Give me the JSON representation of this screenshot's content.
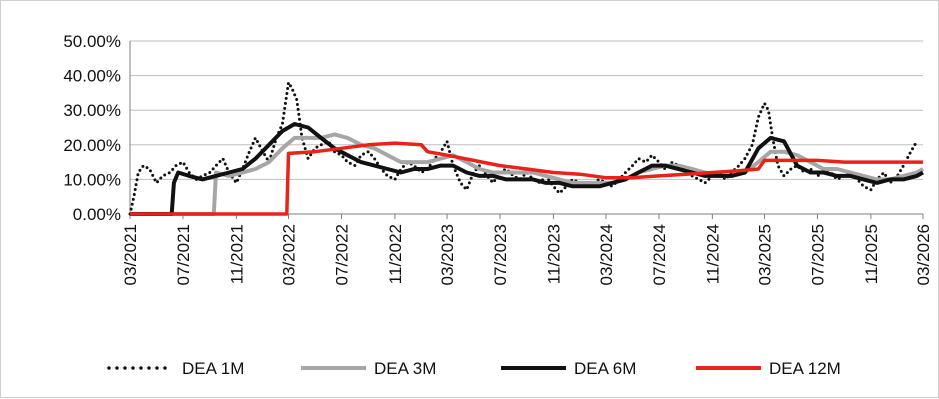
{
  "chart_data": {
    "type": "line",
    "title": "",
    "xlabel": "",
    "ylabel": "",
    "ylim": [
      0,
      0.5
    ],
    "y_ticks": [
      0,
      0.1,
      0.2,
      0.3,
      0.4,
      0.5
    ],
    "y_tick_labels": [
      "0.00%",
      "10.00%",
      "20.00%",
      "30.00%",
      "40.00%",
      "50.00%"
    ],
    "x_range": [
      "2021-03-01",
      "2026-03-01"
    ],
    "x_ticks": [
      "2021-03-01",
      "2021-07-01",
      "2021-11-01",
      "2022-03-01",
      "2022-07-01",
      "2022-11-01",
      "2023-03-01",
      "2023-07-01",
      "2023-11-01",
      "2024-03-01",
      "2024-07-01",
      "2024-11-01",
      "2025-03-01",
      "2025-07-01",
      "2025-11-01",
      "2026-03-01"
    ],
    "x_tick_labels": [
      "03/2021",
      "07/2021",
      "11/2021",
      "03/2022",
      "07/2022",
      "11/2022",
      "03/2023",
      "07/2023",
      "11/2023",
      "03/2024",
      "07/2024",
      "11/2024",
      "03/2025",
      "07/2025",
      "11/2025",
      "03/2026"
    ],
    "grid": true,
    "legend_position": "bottom",
    "series": [
      {
        "name": "DEA 1M",
        "color": "#111111",
        "style": "dotted",
        "points": [
          [
            "2021-03-01",
            0.0
          ],
          [
            "2021-03-10",
            0.05
          ],
          [
            "2021-03-20",
            0.12
          ],
          [
            "2021-04-01",
            0.14
          ],
          [
            "2021-04-15",
            0.13
          ],
          [
            "2021-05-01",
            0.09
          ],
          [
            "2021-05-15",
            0.11
          ],
          [
            "2021-06-01",
            0.12
          ],
          [
            "2021-06-15",
            0.14
          ],
          [
            "2021-07-01",
            0.15
          ],
          [
            "2021-07-15",
            0.12
          ],
          [
            "2021-08-01",
            0.1
          ],
          [
            "2021-08-15",
            0.11
          ],
          [
            "2021-09-01",
            0.12
          ],
          [
            "2021-09-15",
            0.14
          ],
          [
            "2021-10-01",
            0.16
          ],
          [
            "2021-10-15",
            0.12
          ],
          [
            "2021-11-01",
            0.09
          ],
          [
            "2021-11-15",
            0.13
          ],
          [
            "2021-12-01",
            0.18
          ],
          [
            "2021-12-15",
            0.22
          ],
          [
            "2022-01-01",
            0.18
          ],
          [
            "2022-01-15",
            0.15
          ],
          [
            "2022-02-01",
            0.22
          ],
          [
            "2022-02-15",
            0.26
          ],
          [
            "2022-03-01",
            0.38
          ],
          [
            "2022-03-10",
            0.36
          ],
          [
            "2022-03-20",
            0.33
          ],
          [
            "2022-04-01",
            0.22
          ],
          [
            "2022-04-15",
            0.16
          ],
          [
            "2022-05-01",
            0.19
          ],
          [
            "2022-05-15",
            0.2
          ],
          [
            "2022-06-01",
            0.21
          ],
          [
            "2022-06-15",
            0.18
          ],
          [
            "2022-07-01",
            0.17
          ],
          [
            "2022-07-15",
            0.15
          ],
          [
            "2022-08-01",
            0.14
          ],
          [
            "2022-08-15",
            0.17
          ],
          [
            "2022-09-01",
            0.18
          ],
          [
            "2022-09-15",
            0.16
          ],
          [
            "2022-10-01",
            0.13
          ],
          [
            "2022-10-15",
            0.11
          ],
          [
            "2022-11-01",
            0.1
          ],
          [
            "2022-11-15",
            0.13
          ],
          [
            "2022-12-01",
            0.15
          ],
          [
            "2022-12-15",
            0.14
          ],
          [
            "2023-01-01",
            0.12
          ],
          [
            "2023-01-15",
            0.13
          ],
          [
            "2023-02-01",
            0.16
          ],
          [
            "2023-02-15",
            0.18
          ],
          [
            "2023-03-01",
            0.21
          ],
          [
            "2023-03-15",
            0.14
          ],
          [
            "2023-04-01",
            0.09
          ],
          [
            "2023-04-15",
            0.07
          ],
          [
            "2023-05-01",
            0.12
          ],
          [
            "2023-05-15",
            0.14
          ],
          [
            "2023-06-01",
            0.11
          ],
          [
            "2023-06-15",
            0.09
          ],
          [
            "2023-07-01",
            0.12
          ],
          [
            "2023-07-15",
            0.13
          ],
          [
            "2023-08-01",
            0.11
          ],
          [
            "2023-08-15",
            0.1
          ],
          [
            "2023-09-01",
            0.12
          ],
          [
            "2023-09-15",
            0.1
          ],
          [
            "2023-10-01",
            0.09
          ],
          [
            "2023-10-15",
            0.11
          ],
          [
            "2023-11-01",
            0.08
          ],
          [
            "2023-11-15",
            0.06
          ],
          [
            "2023-12-01",
            0.08
          ],
          [
            "2023-12-15",
            0.1
          ],
          [
            "2024-01-01",
            0.09
          ],
          [
            "2024-01-15",
            0.08
          ],
          [
            "2024-02-01",
            0.09
          ],
          [
            "2024-02-15",
            0.1
          ],
          [
            "2024-03-01",
            0.09
          ],
          [
            "2024-03-15",
            0.08
          ],
          [
            "2024-04-01",
            0.1
          ],
          [
            "2024-04-15",
            0.12
          ],
          [
            "2024-05-01",
            0.14
          ],
          [
            "2024-05-15",
            0.16
          ],
          [
            "2024-06-01",
            0.15
          ],
          [
            "2024-06-15",
            0.17
          ],
          [
            "2024-07-01",
            0.15
          ],
          [
            "2024-07-15",
            0.13
          ],
          [
            "2024-08-01",
            0.15
          ],
          [
            "2024-08-15",
            0.14
          ],
          [
            "2024-09-01",
            0.12
          ],
          [
            "2024-09-15",
            0.11
          ],
          [
            "2024-10-01",
            0.1
          ],
          [
            "2024-10-15",
            0.09
          ],
          [
            "2024-11-01",
            0.11
          ],
          [
            "2024-11-15",
            0.12
          ],
          [
            "2024-12-01",
            0.1
          ],
          [
            "2024-12-15",
            0.12
          ],
          [
            "2025-01-01",
            0.14
          ],
          [
            "2025-01-15",
            0.16
          ],
          [
            "2025-02-01",
            0.2
          ],
          [
            "2025-02-15",
            0.28
          ],
          [
            "2025-03-01",
            0.32
          ],
          [
            "2025-03-10",
            0.3
          ],
          [
            "2025-03-20",
            0.22
          ],
          [
            "2025-04-01",
            0.14
          ],
          [
            "2025-04-15",
            0.11
          ],
          [
            "2025-05-01",
            0.13
          ],
          [
            "2025-05-15",
            0.14
          ],
          [
            "2025-06-01",
            0.12
          ],
          [
            "2025-06-15",
            0.13
          ],
          [
            "2025-07-01",
            0.11
          ],
          [
            "2025-07-15",
            0.12
          ],
          [
            "2025-08-01",
            0.12
          ],
          [
            "2025-08-15",
            0.1
          ],
          [
            "2025-09-01",
            0.11
          ],
          [
            "2025-09-15",
            0.12
          ],
          [
            "2025-10-01",
            0.1
          ],
          [
            "2025-10-15",
            0.08
          ],
          [
            "2025-11-01",
            0.07
          ],
          [
            "2025-11-15",
            0.1
          ],
          [
            "2025-12-01",
            0.12
          ],
          [
            "2025-12-15",
            0.09
          ],
          [
            "2026-01-01",
            0.11
          ],
          [
            "2026-01-15",
            0.14
          ],
          [
            "2026-02-01",
            0.18
          ],
          [
            "2026-02-15",
            0.21
          ]
        ]
      },
      {
        "name": "DEA 3M",
        "color": "#a6a6a6",
        "style": "solid",
        "points": [
          [
            "2021-03-01",
            0.0
          ],
          [
            "2021-09-10",
            0.0
          ],
          [
            "2021-09-15",
            0.12
          ],
          [
            "2021-10-15",
            0.11
          ],
          [
            "2021-11-15",
            0.12
          ],
          [
            "2021-12-15",
            0.13
          ],
          [
            "2022-01-15",
            0.15
          ],
          [
            "2022-02-15",
            0.19
          ],
          [
            "2022-03-15",
            0.22
          ],
          [
            "2022-04-15",
            0.22
          ],
          [
            "2022-05-15",
            0.22
          ],
          [
            "2022-06-15",
            0.23
          ],
          [
            "2022-07-15",
            0.22
          ],
          [
            "2022-08-15",
            0.2
          ],
          [
            "2022-09-15",
            0.19
          ],
          [
            "2022-10-15",
            0.17
          ],
          [
            "2022-11-15",
            0.15
          ],
          [
            "2022-12-15",
            0.15
          ],
          [
            "2023-01-15",
            0.15
          ],
          [
            "2023-02-15",
            0.16
          ],
          [
            "2023-03-15",
            0.17
          ],
          [
            "2023-04-15",
            0.15
          ],
          [
            "2023-05-15",
            0.13
          ],
          [
            "2023-06-15",
            0.12
          ],
          [
            "2023-07-15",
            0.12
          ],
          [
            "2023-08-15",
            0.12
          ],
          [
            "2023-09-15",
            0.12
          ],
          [
            "2023-10-15",
            0.11
          ],
          [
            "2023-11-15",
            0.1
          ],
          [
            "2023-12-15",
            0.09
          ],
          [
            "2024-01-15",
            0.09
          ],
          [
            "2024-02-15",
            0.09
          ],
          [
            "2024-03-15",
            0.09
          ],
          [
            "2024-04-15",
            0.1
          ],
          [
            "2024-05-15",
            0.12
          ],
          [
            "2024-06-15",
            0.13
          ],
          [
            "2024-07-15",
            0.14
          ],
          [
            "2024-08-15",
            0.14
          ],
          [
            "2024-09-15",
            0.13
          ],
          [
            "2024-10-15",
            0.12
          ],
          [
            "2024-11-15",
            0.11
          ],
          [
            "2024-12-15",
            0.11
          ],
          [
            "2025-01-15",
            0.12
          ],
          [
            "2025-02-15",
            0.15
          ],
          [
            "2025-03-15",
            0.18
          ],
          [
            "2025-04-15",
            0.18
          ],
          [
            "2025-05-15",
            0.17
          ],
          [
            "2025-06-15",
            0.15
          ],
          [
            "2025-07-15",
            0.13
          ],
          [
            "2025-08-15",
            0.13
          ],
          [
            "2025-09-15",
            0.12
          ],
          [
            "2025-10-15",
            0.11
          ],
          [
            "2025-11-15",
            0.1
          ],
          [
            "2025-12-15",
            0.1
          ],
          [
            "2026-01-15",
            0.11
          ],
          [
            "2026-02-15",
            0.12
          ],
          [
            "2026-03-01",
            0.13
          ]
        ]
      },
      {
        "name": "DEA 6M",
        "color": "#111111",
        "style": "solid",
        "points": [
          [
            "2021-03-01",
            0.0
          ],
          [
            "2021-06-05",
            0.0
          ],
          [
            "2021-06-10",
            0.09
          ],
          [
            "2021-06-20",
            0.12
          ],
          [
            "2021-07-15",
            0.11
          ],
          [
            "2021-08-15",
            0.1
          ],
          [
            "2021-09-15",
            0.11
          ],
          [
            "2021-10-15",
            0.12
          ],
          [
            "2021-11-15",
            0.13
          ],
          [
            "2021-12-15",
            0.16
          ],
          [
            "2022-01-15",
            0.2
          ],
          [
            "2022-02-15",
            0.24
          ],
          [
            "2022-03-15",
            0.26
          ],
          [
            "2022-04-15",
            0.25
          ],
          [
            "2022-05-15",
            0.22
          ],
          [
            "2022-06-15",
            0.19
          ],
          [
            "2022-07-15",
            0.17
          ],
          [
            "2022-08-15",
            0.15
          ],
          [
            "2022-09-15",
            0.14
          ],
          [
            "2022-10-15",
            0.13
          ],
          [
            "2022-11-15",
            0.12
          ],
          [
            "2022-12-15",
            0.13
          ],
          [
            "2023-01-15",
            0.13
          ],
          [
            "2023-02-15",
            0.14
          ],
          [
            "2023-03-15",
            0.14
          ],
          [
            "2023-04-15",
            0.12
          ],
          [
            "2023-05-15",
            0.11
          ],
          [
            "2023-06-15",
            0.11
          ],
          [
            "2023-07-15",
            0.1
          ],
          [
            "2023-08-15",
            0.1
          ],
          [
            "2023-09-15",
            0.1
          ],
          [
            "2023-10-15",
            0.09
          ],
          [
            "2023-11-15",
            0.09
          ],
          [
            "2023-12-15",
            0.08
          ],
          [
            "2024-01-15",
            0.08
          ],
          [
            "2024-02-15",
            0.08
          ],
          [
            "2024-03-15",
            0.09
          ],
          [
            "2024-04-15",
            0.1
          ],
          [
            "2024-05-15",
            0.12
          ],
          [
            "2024-06-15",
            0.14
          ],
          [
            "2024-07-15",
            0.14
          ],
          [
            "2024-08-15",
            0.13
          ],
          [
            "2024-09-15",
            0.12
          ],
          [
            "2024-10-15",
            0.11
          ],
          [
            "2024-11-15",
            0.11
          ],
          [
            "2024-12-15",
            0.11
          ],
          [
            "2025-01-15",
            0.12
          ],
          [
            "2025-02-15",
            0.19
          ],
          [
            "2025-03-15",
            0.22
          ],
          [
            "2025-04-15",
            0.21
          ],
          [
            "2025-05-15",
            0.14
          ],
          [
            "2025-06-15",
            0.12
          ],
          [
            "2025-07-15",
            0.12
          ],
          [
            "2025-08-15",
            0.11
          ],
          [
            "2025-09-15",
            0.11
          ],
          [
            "2025-10-15",
            0.1
          ],
          [
            "2025-11-15",
            0.09
          ],
          [
            "2025-12-15",
            0.1
          ],
          [
            "2026-01-15",
            0.1
          ],
          [
            "2026-02-15",
            0.11
          ],
          [
            "2026-03-01",
            0.12
          ]
        ]
      },
      {
        "name": "DEA 12M",
        "color": "#e8231a",
        "style": "solid",
        "points": [
          [
            "2021-03-01",
            0.0
          ],
          [
            "2022-02-25",
            0.0
          ],
          [
            "2022-03-01",
            0.175
          ],
          [
            "2022-05-01",
            0.18
          ],
          [
            "2022-07-01",
            0.19
          ],
          [
            "2022-09-01",
            0.2
          ],
          [
            "2022-11-01",
            0.205
          ],
          [
            "2023-01-01",
            0.2
          ],
          [
            "2023-01-15",
            0.18
          ],
          [
            "2023-03-01",
            0.17
          ],
          [
            "2023-05-01",
            0.155
          ],
          [
            "2023-07-01",
            0.14
          ],
          [
            "2023-09-01",
            0.13
          ],
          [
            "2023-11-01",
            0.12
          ],
          [
            "2024-01-01",
            0.115
          ],
          [
            "2024-03-01",
            0.105
          ],
          [
            "2024-05-01",
            0.105
          ],
          [
            "2024-07-01",
            0.11
          ],
          [
            "2024-09-01",
            0.115
          ],
          [
            "2024-11-01",
            0.12
          ],
          [
            "2025-01-01",
            0.125
          ],
          [
            "2025-02-15",
            0.13
          ],
          [
            "2025-03-01",
            0.155
          ],
          [
            "2025-05-01",
            0.155
          ],
          [
            "2025-07-01",
            0.155
          ],
          [
            "2025-09-01",
            0.15
          ],
          [
            "2025-11-01",
            0.15
          ],
          [
            "2026-01-01",
            0.15
          ],
          [
            "2026-03-01",
            0.15
          ]
        ]
      }
    ]
  }
}
